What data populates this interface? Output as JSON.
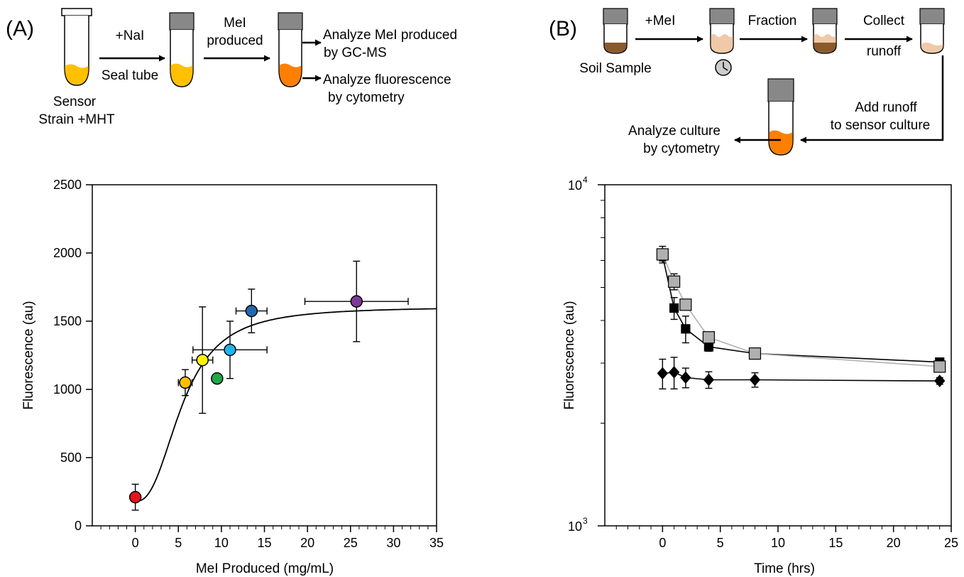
{
  "panels": {
    "a": "(A)",
    "b": "(B)"
  },
  "scheme_a": {
    "step1": "+NaI",
    "step1b": "Seal tube",
    "step2a": "MeI",
    "step2b": "produced",
    "out1a": "Analyze MeI produced",
    "out1b": "by GC-MS",
    "out2a": "Analyze fluorescence",
    "out2b": "by cytometry",
    "start_a": "Sensor",
    "start_b": "Strain +MHT"
  },
  "scheme_b": {
    "soil": "Soil Sample",
    "step1": "+MeI",
    "step2": "Fraction",
    "step3a": "Collect",
    "step3b": "runoff",
    "step4a": "Add runoff",
    "step4b": "to sensor culture",
    "step5a": "Analyze culture",
    "step5b": "by cytometry"
  },
  "colors": {
    "tube_yellow": "#FFC000",
    "tube_orange": "#FF7F00",
    "cap": "#888888",
    "soil_dark": "#8B5A2B",
    "soil_light": "#EFC9A8",
    "grey_series": "#B0B0B0"
  },
  "chart_data": [
    {
      "type": "scatter",
      "xlabel": "MeI Produced (mg/mL)",
      "ylabel": "Fluorescence (au)",
      "xlim": [
        -5,
        35
      ],
      "ylim": [
        0,
        2500
      ],
      "xticks": [
        0,
        5,
        10,
        15,
        20,
        25,
        30,
        35
      ],
      "yticks": [
        0,
        500,
        1000,
        1500,
        2000,
        2500
      ],
      "points": [
        {
          "x": 0,
          "y": 210,
          "xerr": 0,
          "yerr": 95,
          "color": "#E8131B"
        },
        {
          "x": 5.8,
          "y": 1050,
          "xerr": 0.8,
          "yerr": 95,
          "color": "#FFC000"
        },
        {
          "x": 7.8,
          "y": 1215,
          "xerr": 1.2,
          "yerr": 390,
          "color": "#FFF200"
        },
        {
          "x": 9.5,
          "y": 1080,
          "xerr": 0,
          "yerr": 0,
          "color": "#1FA84A"
        },
        {
          "x": 11.0,
          "y": 1290,
          "xerr": 4.3,
          "yerr": 210,
          "color": "#21B4EA"
        },
        {
          "x": 13.5,
          "y": 1575,
          "xerr": 1.8,
          "yerr": 160,
          "color": "#2167B0"
        },
        {
          "x": 25.7,
          "y": 1645,
          "xerr": 6.0,
          "yerr": 295,
          "color": "#7D3A98"
        }
      ],
      "fit": {
        "model": "hill",
        "baseline": 180,
        "max": 1605,
        "k": 5.5,
        "n": 2.5
      }
    },
    {
      "type": "line",
      "xlabel": "Time (hrs)",
      "ylabel": "Fluorescence (au)",
      "yscale": "log",
      "xlim": [
        -5,
        25
      ],
      "ylim": [
        1000,
        10000
      ],
      "xticks": [
        0,
        5,
        10,
        15,
        20,
        25
      ],
      "ytick_labels": [
        "10",
        "10"
      ],
      "ytick_exps": [
        "3",
        "4"
      ],
      "series": [
        {
          "marker": "square",
          "color": "#000000",
          "x": [
            0,
            1,
            2,
            4,
            8,
            24
          ],
          "y": [
            6200,
            4350,
            3780,
            3350,
            3200,
            3020
          ],
          "yerr": [
            220,
            320,
            340,
            100,
            80,
            60
          ]
        },
        {
          "marker": "square",
          "color": "#B0B0B0",
          "x": [
            0,
            1,
            2,
            4,
            8,
            24
          ],
          "y": [
            6250,
            5200,
            4450,
            3570,
            3200,
            2930
          ],
          "yerr": [
            350,
            280,
            120,
            120,
            80,
            70
          ]
        },
        {
          "marker": "diamond",
          "color": "#000000",
          "x": [
            0,
            1,
            2,
            4,
            8,
            24
          ],
          "y": [
            2800,
            2820,
            2720,
            2680,
            2680,
            2660
          ],
          "yerr": [
            280,
            300,
            180,
            150,
            130,
            60
          ]
        }
      ]
    }
  ]
}
